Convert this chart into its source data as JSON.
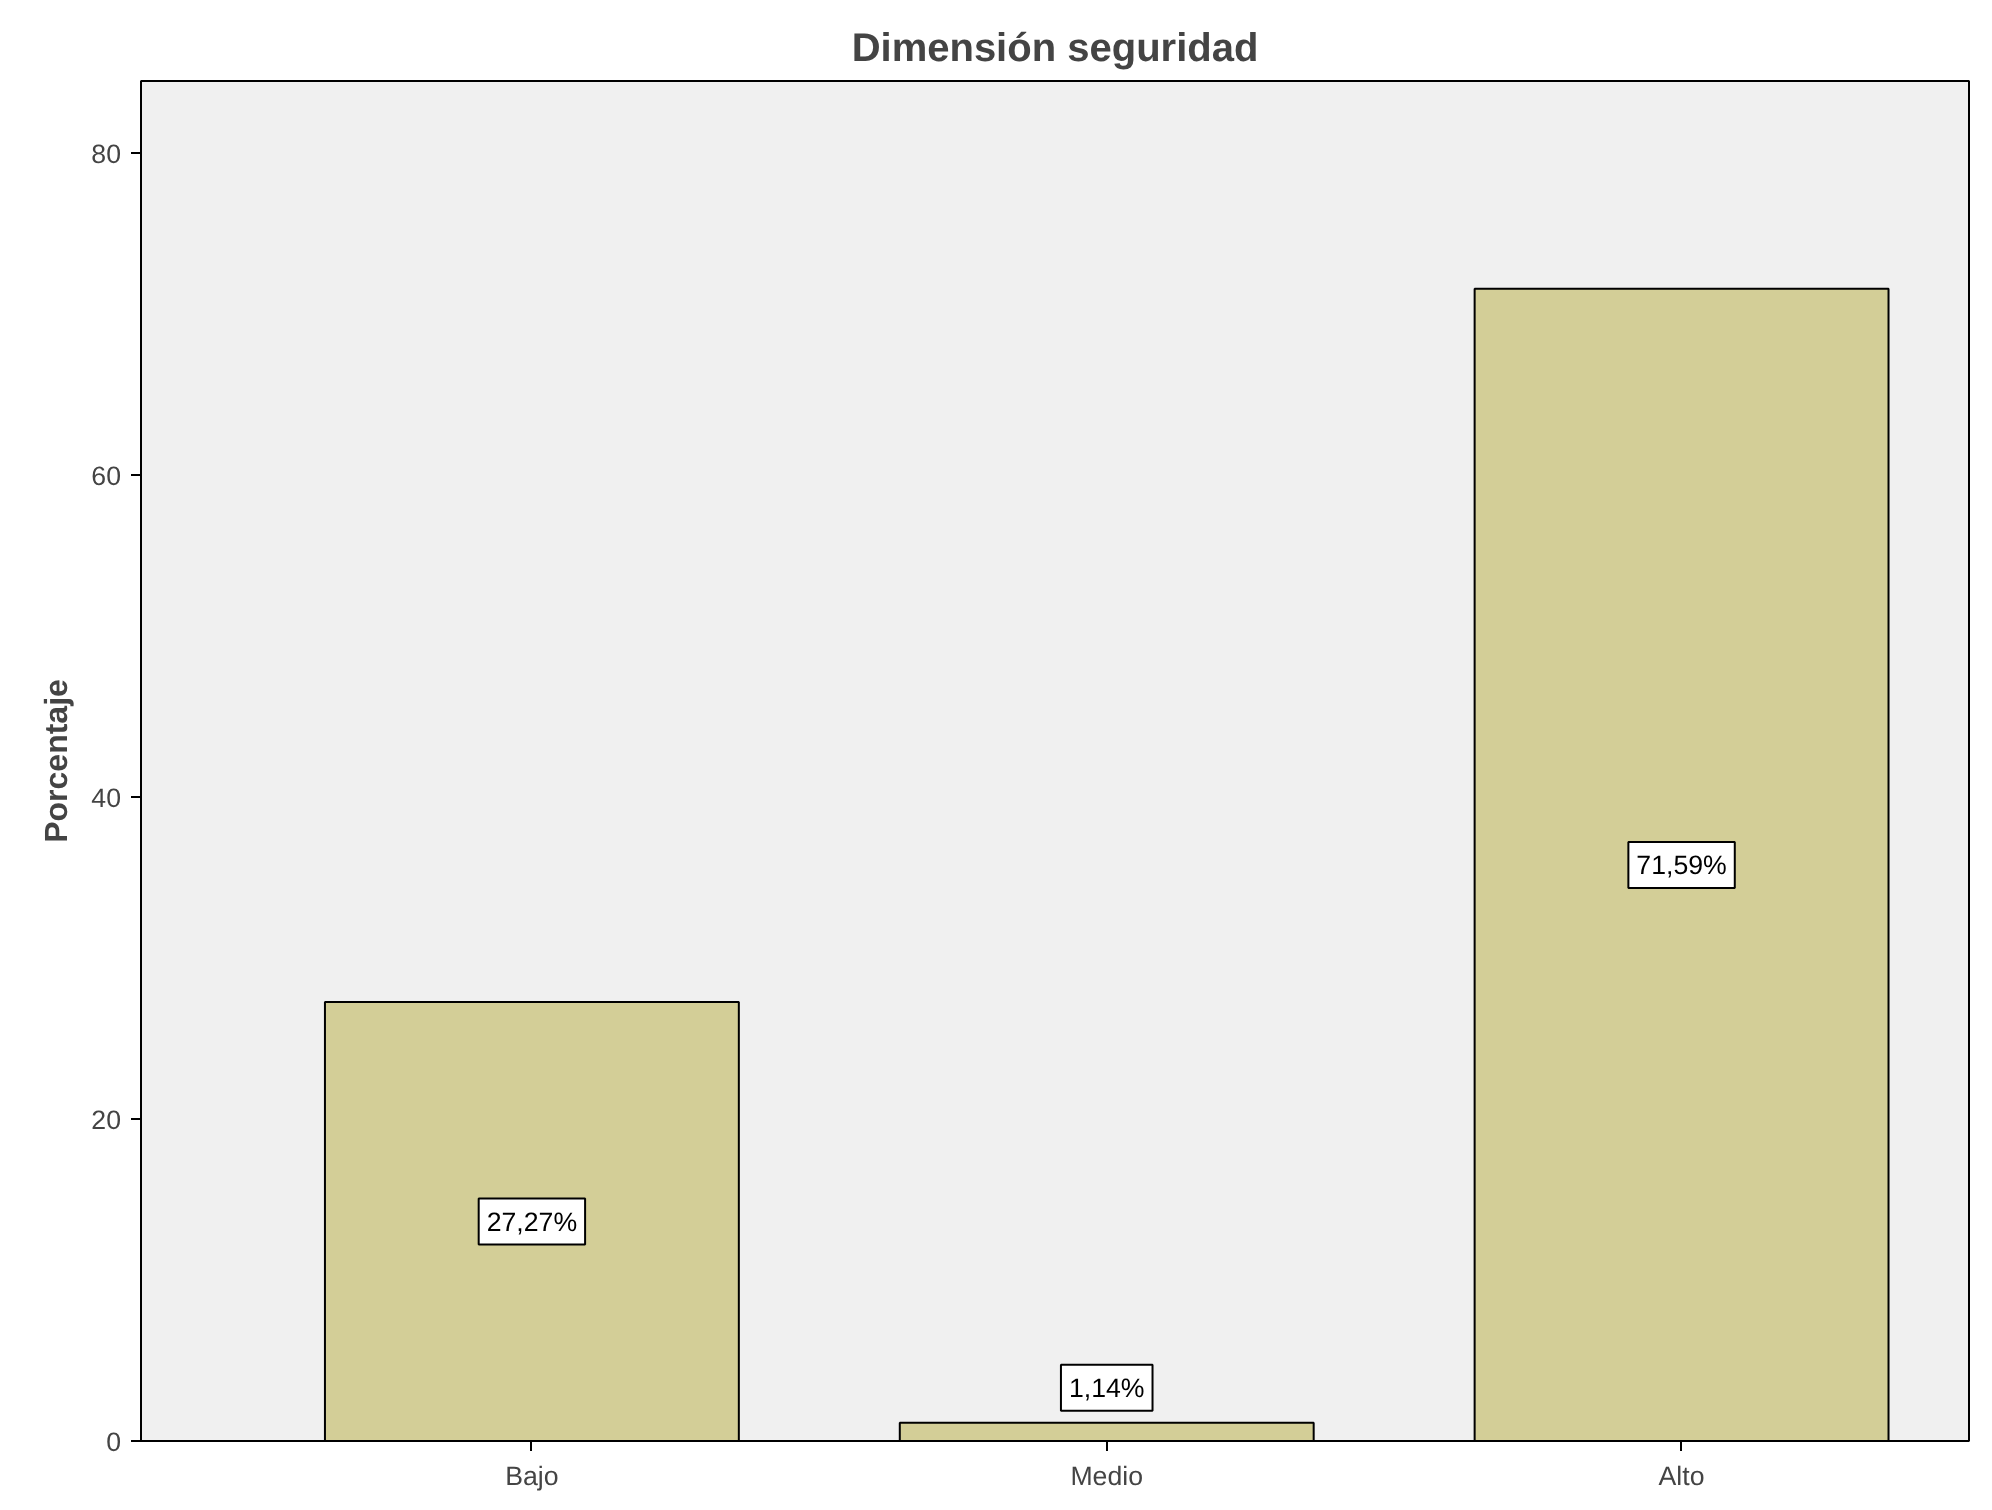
{
  "chart_data": {
    "type": "bar",
    "title": "Dimensión seguridad",
    "ylabel": "Porcentaje",
    "categories": [
      "Bajo",
      "Medio",
      "Alto"
    ],
    "values": [
      27.27,
      1.14,
      71.59
    ],
    "value_labels": [
      "27,27%",
      "1,14%",
      "71,59%"
    ],
    "color": "#d3ce97",
    "ylim": [
      0,
      84.5
    ],
    "yticks": [
      0,
      20,
      40,
      60,
      80
    ],
    "grid": false
  }
}
